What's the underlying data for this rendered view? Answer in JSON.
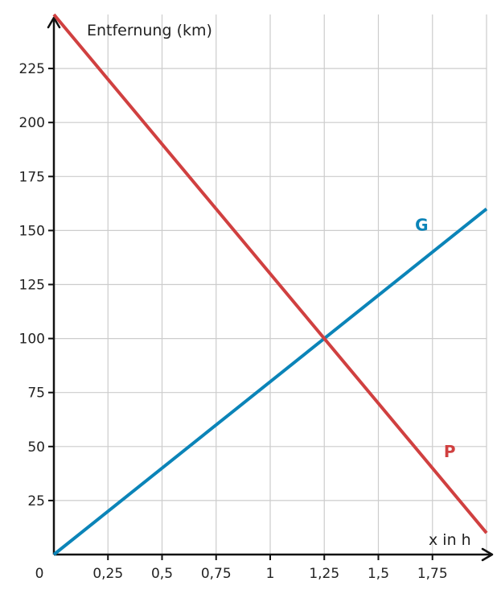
{
  "chart_data": {
    "type": "line",
    "ylabel": "Entfernung (km)",
    "xlabel": "x in h",
    "origin_label": "0",
    "xlim": [
      0,
      2
    ],
    "ylim": [
      0,
      250
    ],
    "x_ticks": [
      {
        "value": 0.25,
        "label": "0,25"
      },
      {
        "value": 0.5,
        "label": "0,5"
      },
      {
        "value": 0.75,
        "label": "0,75"
      },
      {
        "value": 1,
        "label": "1"
      },
      {
        "value": 1.25,
        "label": "1,25"
      },
      {
        "value": 1.5,
        "label": "1,5"
      },
      {
        "value": 1.75,
        "label": "1,75"
      }
    ],
    "y_ticks": [
      {
        "value": 25,
        "label": "25"
      },
      {
        "value": 50,
        "label": "50"
      },
      {
        "value": 75,
        "label": "75"
      },
      {
        "value": 100,
        "label": "100"
      },
      {
        "value": 125,
        "label": "125"
      },
      {
        "value": 150,
        "label": "150"
      },
      {
        "value": 175,
        "label": "175"
      },
      {
        "value": 200,
        "label": "200"
      },
      {
        "value": 225,
        "label": "225"
      }
    ],
    "grid": true,
    "series": [
      {
        "name": "G",
        "color": "#0b84b8",
        "x": [
          0,
          2
        ],
        "y": [
          0,
          160
        ],
        "label_at": {
          "x": 1.7,
          "y": 150
        }
      },
      {
        "name": "P",
        "color": "#d04040",
        "x": [
          0,
          2
        ],
        "y": [
          250,
          10
        ],
        "label_at": {
          "x": 1.83,
          "y": 45
        }
      }
    ]
  }
}
